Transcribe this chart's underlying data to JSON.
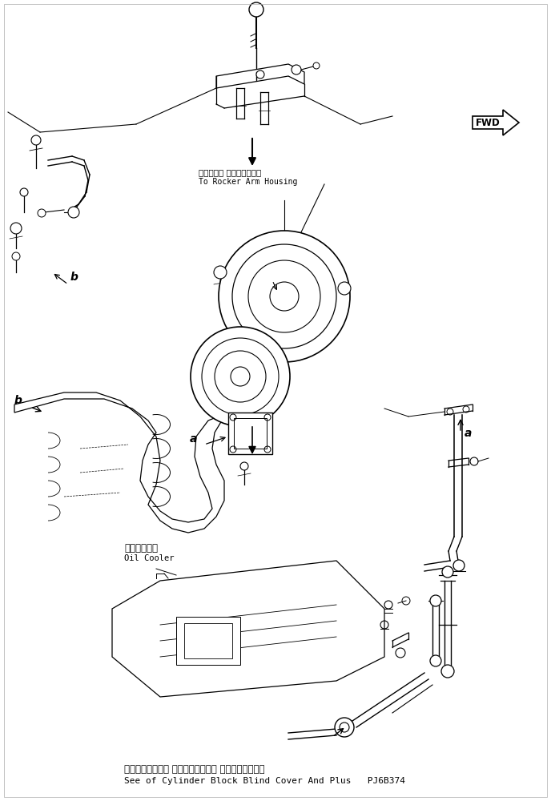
{
  "fig_width": 6.88,
  "fig_height": 10.0,
  "dpi": 100,
  "bg_color": "#ffffff",
  "line_color": "#000000",
  "bottom_text_jp": "シリンダブロック ブラインドカバー およびプラグ参照",
  "bottom_text_en": "See of Cylinder Block Blind Cover And Plus   PJ6B374",
  "label_rocker_jp": "ロッカアー ムハウジングへ",
  "label_rocker_en": "To Rocker Arm Housing",
  "label_oil_jp": "オイルクーラ",
  "label_oil_en": "Oil Cooler",
  "label_fwd": "FWD",
  "label_a1": "a",
  "label_a2": "a",
  "label_b1": "b",
  "label_b2": "b"
}
